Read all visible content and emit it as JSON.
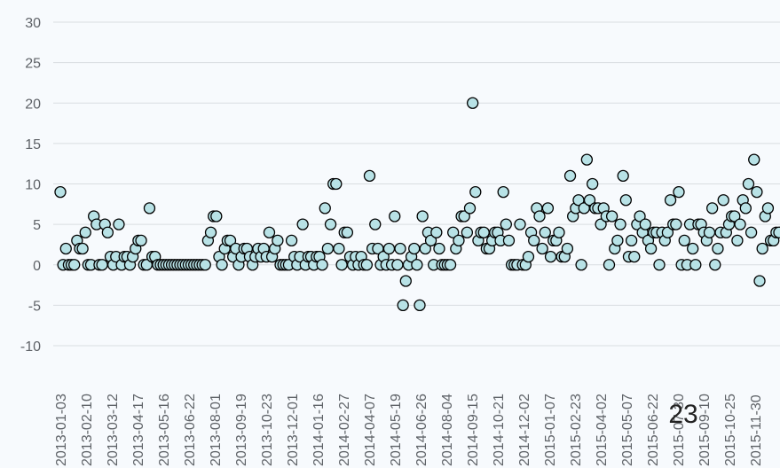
{
  "chart_data": {
    "type": "scatter",
    "title": "",
    "xlabel": "",
    "ylabel": "",
    "ylim": [
      -10,
      30
    ],
    "y_ticks": [
      -10,
      -5,
      0,
      5,
      10,
      15,
      20,
      25,
      30
    ],
    "grid": true,
    "legend": "none",
    "x_tick_labels": [
      "2013-01-03",
      "2013-02-10",
      "2013-03-12",
      "2013-04-17",
      "2013-05-16",
      "2013-06-22",
      "2013-08-01",
      "2013-09-19",
      "2013-10-23",
      "2013-12-01",
      "2014-01-16",
      "2014-02-27",
      "2014-04-07",
      "2014-05-19",
      "2014-06-26",
      "2014-08-04",
      "2014-09-15",
      "2014-10-21",
      "2014-12-02",
      "2015-01-07",
      "2015-02-23",
      "2015-04-02",
      "2015-05-07",
      "2015-06-22",
      "2015-07-30",
      "2015-09-10",
      "2015-10-25",
      "2015-11-30"
    ],
    "annotation": "23",
    "marker_color": "#b8e2e6",
    "values": [
      9,
      0,
      2,
      0,
      0,
      0,
      3,
      2,
      2,
      4,
      0,
      0,
      6,
      5,
      0,
      0,
      5,
      4,
      1,
      0,
      1,
      5,
      0,
      1,
      1,
      0,
      1,
      2,
      3,
      3,
      0,
      0,
      7,
      1,
      1,
      0,
      0,
      0,
      0,
      0,
      0,
      0,
      0,
      0,
      0,
      0,
      0,
      0,
      0,
      0,
      0,
      0,
      0,
      3,
      4,
      6,
      6,
      1,
      0,
      2,
      3,
      3,
      1,
      2,
      0,
      1,
      2,
      2,
      1,
      0,
      1,
      2,
      1,
      2,
      1,
      4,
      1,
      2,
      3,
      0,
      0,
      0,
      0,
      3,
      1,
      0,
      1,
      5,
      0,
      1,
      1,
      0,
      1,
      1,
      0,
      7,
      2,
      5,
      10,
      10,
      2,
      0,
      4,
      4,
      1,
      0,
      1,
      0,
      1,
      0,
      0,
      11,
      2,
      5,
      2,
      0,
      1,
      0,
      2,
      0,
      6,
      0,
      2,
      -5,
      -2,
      0,
      1,
      2,
      0,
      -5,
      6,
      2,
      4,
      3,
      0,
      4,
      2,
      0,
      0,
      0,
      0,
      4,
      2,
      3,
      6,
      6,
      4,
      7,
      20,
      9,
      3,
      4,
      4,
      2,
      2,
      3,
      4,
      4,
      3,
      9,
      5,
      3,
      0,
      0,
      0,
      5,
      0,
      0,
      1,
      4,
      3,
      7,
      6,
      2,
      4,
      7,
      1,
      3,
      3,
      4,
      1,
      1,
      2,
      11,
      6,
      7,
      8,
      0,
      7,
      13,
      8,
      10,
      7,
      7,
      5,
      7,
      6,
      0,
      6,
      2,
      3,
      5,
      11,
      8,
      1,
      3,
      1,
      5,
      6,
      4,
      5,
      3,
      2,
      4,
      4,
      0,
      4,
      3,
      4,
      8,
      5,
      5,
      9,
      0,
      3,
      0,
      5,
      2,
      0,
      5,
      5,
      4,
      3,
      4,
      7,
      0,
      2,
      4,
      8,
      4,
      5,
      6,
      6,
      3,
      5,
      8,
      7,
      10,
      4,
      13,
      9,
      -2,
      2,
      6,
      7,
      3,
      3,
      4,
      4
    ]
  }
}
